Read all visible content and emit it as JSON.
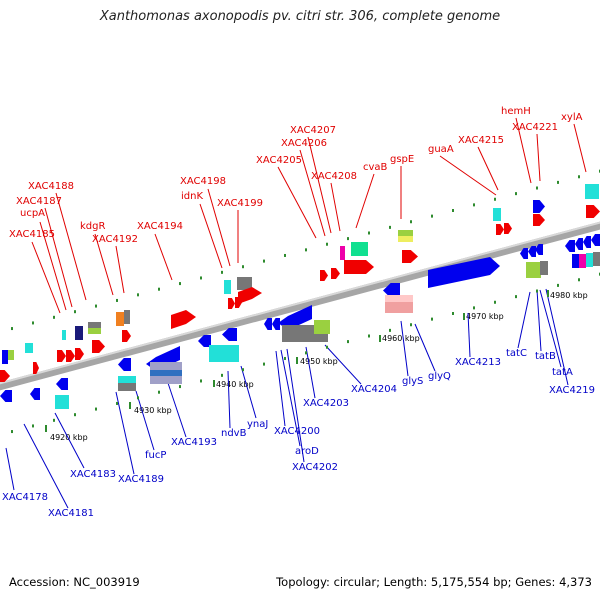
{
  "header": {
    "title": "Xanthomonas axonopodis pv. citri str. 306, complete genome"
  },
  "footer": {
    "accession": "Accession: NC_003919",
    "topology": "Topology: circular; Length: 5,175,554 bp; Genes: 4,373"
  },
  "colors": {
    "backbone": "#a6a6a6",
    "tick": "#2e8b2e",
    "label_top": "#e00000",
    "label_bottom": "#0000c8",
    "gene_red": "#f00000",
    "gene_blue": "#0000ee",
    "gene_cyan": "#22e0d8",
    "gene_gray": "#777777",
    "gene_green": "#9ad040",
    "gene_pink": "#f0a0a0"
  },
  "scale_labels": [
    "4920 kbp",
    "4930 kbp",
    "4940 kbp",
    "4950 kbp",
    "4960 kbp",
    "4970 kbp",
    "4980 kbp"
  ],
  "gene_labels_top": [
    "XAC4185",
    "ucpA",
    "XAC4187",
    "XAC4188",
    "kdgR",
    "XAC4192",
    "XAC4194",
    "idnK",
    "XAC4198",
    "XAC4199",
    "XAC4205",
    "XAC4206",
    "XAC4207",
    "XAC4208",
    "cvaB",
    "gspE",
    "guaA",
    "XAC4215",
    "hemH",
    "XAC4221",
    "xylA"
  ],
  "gene_labels_bottom": [
    "XAC4178",
    "XAC4181",
    "XAC4183",
    "XAC4189",
    "fucP",
    "XAC4193",
    "ndvB",
    "ynaJ",
    "XAC4200",
    "aroD",
    "XAC4202",
    "XAC4203",
    "XAC4204",
    "glyS",
    "glyQ",
    "XAC4213",
    "tatC",
    "tatB",
    "tatA",
    "XAC4219"
  ]
}
